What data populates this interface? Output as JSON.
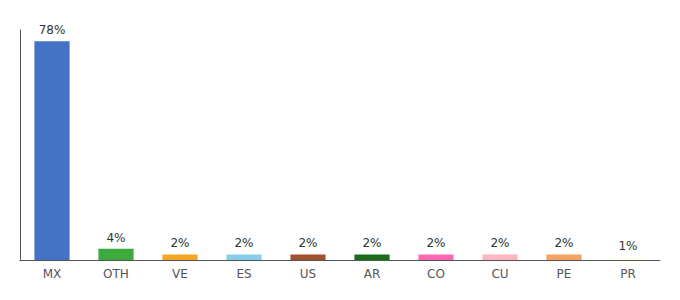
{
  "chart_data": {
    "type": "bar",
    "categories": [
      "MX",
      "OTH",
      "VE",
      "ES",
      "US",
      "AR",
      "CO",
      "CU",
      "PE",
      "PR"
    ],
    "values": [
      78,
      4,
      2,
      2,
      2,
      2,
      2,
      2,
      2,
      1
    ],
    "value_labels": [
      "78%",
      "4%",
      "2%",
      "2%",
      "2%",
      "2%",
      "2%",
      "2%",
      "2%",
      "1%"
    ],
    "colors": [
      "#4472C4",
      "#3DAA3D",
      "#F5A623",
      "#87CEEB",
      "#A0522D",
      "#1A6E1A",
      "#FF69B4",
      "#FFB6C1",
      "#F4A460",
      "#FFFFEE"
    ],
    "ylim": [
      0,
      82
    ],
    "data_labels": true,
    "tick_labels": "x",
    "grid": false
  }
}
